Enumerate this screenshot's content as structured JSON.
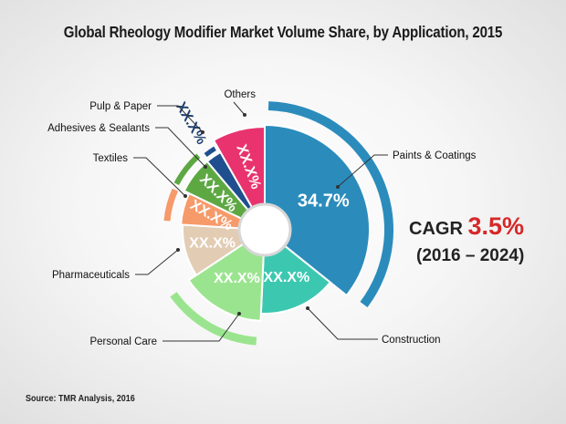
{
  "chart_data": {
    "type": "pie",
    "title": "Global Rheology Modifier Market Volume Share, by Application, 2015",
    "slices": [
      {
        "label": "Paints & Coatings",
        "value": 34.7,
        "value_label": "34.7%",
        "color": "#2b8cbc"
      },
      {
        "label": "Construction",
        "value": 14.5,
        "value_label": "XX.X%",
        "color": "#3cc8b0"
      },
      {
        "label": "Personal Care",
        "value": 14.5,
        "value_label": "XX.X%",
        "color": "#9be48f"
      },
      {
        "label": "Pharmaceuticals",
        "value": 10.0,
        "value_label": "XX.X%",
        "color": "#e2cdb4"
      },
      {
        "label": "Textiles",
        "value": 6.0,
        "value_label": "XX.X%",
        "color": "#f69a6a"
      },
      {
        "label": "Adhesives & Sealants",
        "value": 6.5,
        "value_label": "XX.X%",
        "color": "#5ea844"
      },
      {
        "label": "Pulp & Paper",
        "value": 2.8,
        "value_label": "XX.X%",
        "color": "#1f4f8f"
      },
      {
        "label": "Others",
        "value": 8.0,
        "value_label": "XX.X%",
        "color": "#e8336f"
      }
    ],
    "cagr_label": "CAGR",
    "cagr_value": "3.5%",
    "cagr_period": "(2016 – 2024)"
  },
  "source": "Source: TMR Analysis, 2016"
}
